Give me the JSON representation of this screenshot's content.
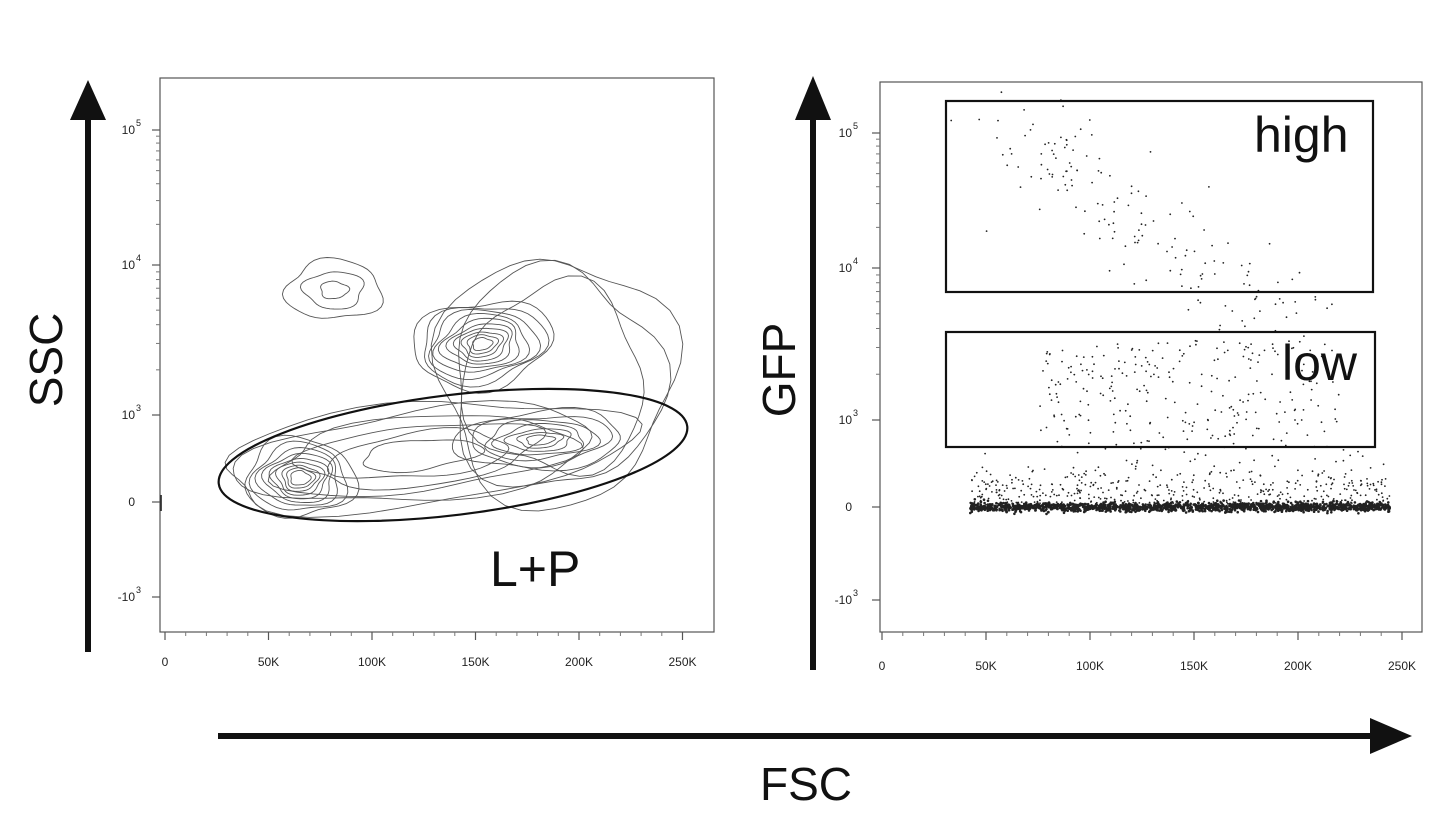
{
  "colors": {
    "ink": "#111111",
    "frame": "#555555",
    "contour": "#555555",
    "event": "#222222"
  },
  "axis_labels": {
    "x_shared": "FSC",
    "y_left": "SSC",
    "y_right": "GFP"
  },
  "chart_data": [
    {
      "type": "contour",
      "xlabel": "FSC",
      "ylabel": "SSC",
      "x_ticks": [
        "0",
        "50K",
        "100K",
        "150K",
        "200K",
        "250K"
      ],
      "x_tick_values": [
        0,
        50000,
        100000,
        150000,
        200000,
        250000
      ],
      "y_ticks": [
        {
          "base": "10",
          "exp": "5"
        },
        {
          "base": "10",
          "exp": "4"
        },
        {
          "base": "10",
          "exp": "3"
        },
        {
          "base": "0",
          "exp": ""
        },
        {
          "base": "-10",
          "exp": "3"
        }
      ],
      "y_tick_values": [
        100000,
        10000,
        1000,
        0,
        -1000
      ],
      "y_scale": "biexponential",
      "xlim": [
        0,
        262144
      ],
      "populations": [
        {
          "fsc": 66000,
          "ssc": 150,
          "weight": "major"
        },
        {
          "fsc": 155000,
          "ssc": 2800,
          "weight": "major"
        },
        {
          "fsc": 190000,
          "ssc": 650,
          "weight": "medium"
        },
        {
          "fsc": 80000,
          "ssc": 7000,
          "weight": "minor"
        }
      ],
      "gates": [
        {
          "label": "L+P",
          "shape": "ellipse"
        }
      ]
    },
    {
      "type": "scatter",
      "xlabel": "FSC",
      "ylabel": "GFP",
      "x_ticks": [
        "0",
        "50K",
        "100K",
        "150K",
        "200K",
        "250K"
      ],
      "x_tick_values": [
        0,
        50000,
        100000,
        150000,
        200000,
        250000
      ],
      "y_ticks": [
        {
          "base": "10",
          "exp": "5"
        },
        {
          "base": "10",
          "exp": "4"
        },
        {
          "base": "10",
          "exp": "3"
        },
        {
          "base": "0",
          "exp": ""
        },
        {
          "base": "-10",
          "exp": "3"
        }
      ],
      "y_tick_values": [
        100000,
        10000,
        1000,
        0,
        -1000
      ],
      "y_scale": "biexponential",
      "xlim": [
        0,
        262144
      ],
      "gates": [
        {
          "label": "high",
          "shape": "rectangle",
          "fsc_range": [
            30000,
            228000
          ],
          "gfp_range": [
            6500,
            170000
          ]
        },
        {
          "label": "low",
          "shape": "rectangle",
          "fsc_range": [
            30000,
            228000
          ],
          "gfp_range": [
            650,
            3700
          ]
        }
      ]
    }
  ]
}
